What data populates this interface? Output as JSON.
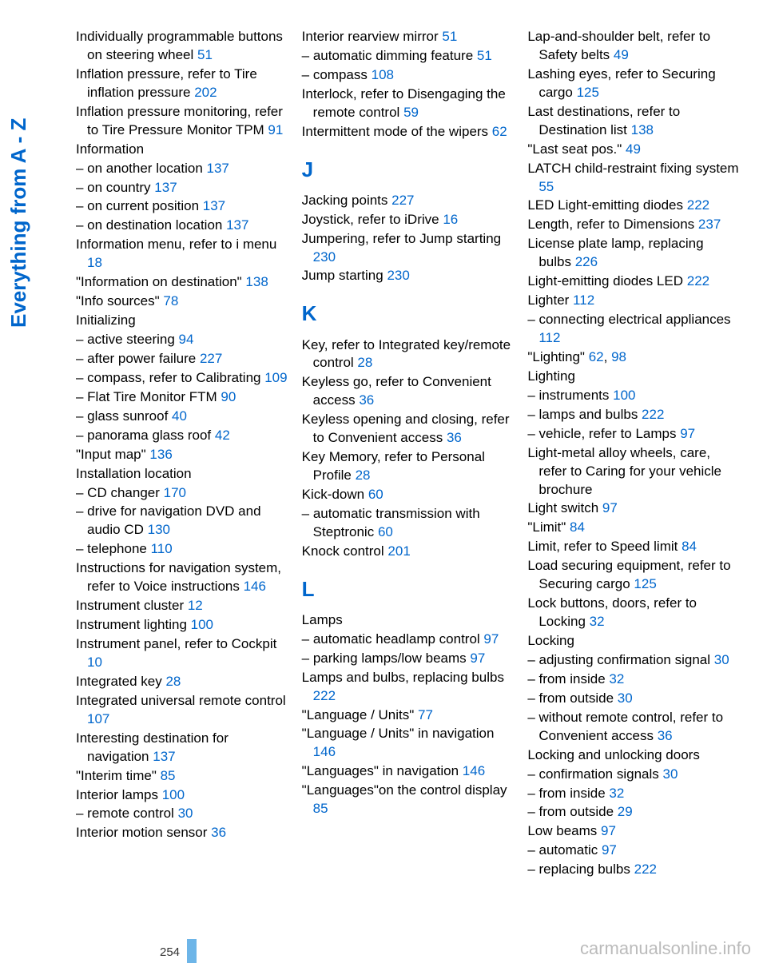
{
  "sidebar_title": "Everything from A - Z",
  "page_number": "254",
  "watermark": "carmanualsonline.info",
  "link_color": "#0066cc",
  "columns": [
    [
      {
        "t": "entry",
        "text": "Individually programmable buttons on steering wheel ",
        "pg": "51"
      },
      {
        "t": "entry",
        "text": "Inflation pressure, refer to Tire inflation pressure ",
        "pg": "202"
      },
      {
        "t": "entry",
        "text": "Inflation pressure monitoring, refer to Tire Pressure Monitor TPM ",
        "pg": "91"
      },
      {
        "t": "plain",
        "text": "Information"
      },
      {
        "t": "sub",
        "text": "– on another location ",
        "pg": "137"
      },
      {
        "t": "sub",
        "text": "– on country ",
        "pg": "137"
      },
      {
        "t": "sub",
        "text": "– on current position ",
        "pg": "137"
      },
      {
        "t": "sub",
        "text": "– on destination location ",
        "pg": "137"
      },
      {
        "t": "entry",
        "text": "Information menu, refer to i menu ",
        "pg": "18"
      },
      {
        "t": "entry",
        "text": "\"Information on destination\" ",
        "pg": "138"
      },
      {
        "t": "entry",
        "text": "\"Info sources\" ",
        "pg": "78"
      },
      {
        "t": "plain",
        "text": "Initializing"
      },
      {
        "t": "sub",
        "text": "– active steering ",
        "pg": "94"
      },
      {
        "t": "sub",
        "text": "– after power failure ",
        "pg": "227"
      },
      {
        "t": "sub",
        "text": "– compass, refer to Calibrating ",
        "pg": "109"
      },
      {
        "t": "sub",
        "text": "– Flat Tire Monitor FTM ",
        "pg": "90"
      },
      {
        "t": "sub",
        "text": "– glass sunroof ",
        "pg": "40"
      },
      {
        "t": "sub",
        "text": "– panorama glass roof ",
        "pg": "42"
      },
      {
        "t": "entry",
        "text": "\"Input map\" ",
        "pg": "136"
      },
      {
        "t": "plain",
        "text": "Installation location"
      },
      {
        "t": "sub",
        "text": "– CD changer ",
        "pg": "170"
      },
      {
        "t": "sub",
        "text": "– drive for navigation DVD and audio CD ",
        "pg": "130"
      },
      {
        "t": "sub",
        "text": "– telephone ",
        "pg": "110"
      },
      {
        "t": "entry",
        "text": "Instructions for navigation system, refer to Voice instructions ",
        "pg": "146"
      },
      {
        "t": "entry",
        "text": "Instrument cluster ",
        "pg": "12"
      },
      {
        "t": "entry",
        "text": "Instrument lighting ",
        "pg": "100"
      },
      {
        "t": "entry",
        "text": "Instrument panel, refer to Cockpit ",
        "pg": "10"
      },
      {
        "t": "entry",
        "text": "Integrated key ",
        "pg": "28"
      },
      {
        "t": "entry",
        "text": "Integrated universal remote control ",
        "pg": "107"
      },
      {
        "t": "entry",
        "text": "Interesting destination for navigation ",
        "pg": "137"
      },
      {
        "t": "entry",
        "text": "\"Interim time\" ",
        "pg": "85"
      },
      {
        "t": "entry",
        "text": "Interior lamps ",
        "pg": "100"
      },
      {
        "t": "sub",
        "text": "– remote control ",
        "pg": "30"
      },
      {
        "t": "entry",
        "text": "Interior motion sensor ",
        "pg": "36"
      }
    ],
    [
      {
        "t": "entry",
        "text": "Interior rearview mirror ",
        "pg": "51"
      },
      {
        "t": "sub",
        "text": "– automatic dimming feature ",
        "pg": "51"
      },
      {
        "t": "sub",
        "text": "– compass ",
        "pg": "108"
      },
      {
        "t": "entry",
        "text": "Interlock, refer to Disengaging the remote control ",
        "pg": "59"
      },
      {
        "t": "entry",
        "text": "Intermittent mode of the wipers ",
        "pg": "62"
      },
      {
        "t": "letter",
        "text": "J"
      },
      {
        "t": "entry",
        "text": "Jacking points ",
        "pg": "227"
      },
      {
        "t": "entry",
        "text": "Joystick, refer to iDrive ",
        "pg": "16"
      },
      {
        "t": "entry",
        "text": "Jumpering, refer to Jump starting ",
        "pg": "230"
      },
      {
        "t": "entry",
        "text": "Jump starting ",
        "pg": "230"
      },
      {
        "t": "letter",
        "text": "K"
      },
      {
        "t": "entry",
        "text": "Key, refer to Integrated key/remote control ",
        "pg": "28"
      },
      {
        "t": "entry",
        "text": "Keyless go, refer to Convenient access ",
        "pg": "36"
      },
      {
        "t": "entry",
        "text": "Keyless opening and closing, refer to Convenient access ",
        "pg": "36"
      },
      {
        "t": "entry",
        "text": "Key Memory, refer to Personal Profile ",
        "pg": "28"
      },
      {
        "t": "entry",
        "text": "Kick-down ",
        "pg": "60"
      },
      {
        "t": "sub",
        "text": "– automatic transmission with Steptronic ",
        "pg": "60"
      },
      {
        "t": "entry",
        "text": "Knock control ",
        "pg": "201"
      },
      {
        "t": "letter",
        "text": "L"
      },
      {
        "t": "plain",
        "text": "Lamps"
      },
      {
        "t": "sub",
        "text": "– automatic headlamp control ",
        "pg": "97"
      },
      {
        "t": "sub",
        "text": "– parking lamps/low beams ",
        "pg": "97"
      },
      {
        "t": "entry",
        "text": "Lamps and bulbs, replacing bulbs ",
        "pg": "222"
      },
      {
        "t": "entry",
        "text": "\"Language / Units\" ",
        "pg": "77"
      },
      {
        "t": "entry",
        "text": "\"Language / Units\" in navigation ",
        "pg": "146"
      },
      {
        "t": "entry",
        "text": "\"Languages\" in navigation ",
        "pg": "146"
      },
      {
        "t": "entry",
        "text": "\"Languages\"on the control display ",
        "pg": "85"
      }
    ],
    [
      {
        "t": "entry",
        "text": "Lap-and-shoulder belt, refer to Safety belts ",
        "pg": "49"
      },
      {
        "t": "entry",
        "text": "Lashing eyes, refer to Securing cargo ",
        "pg": "125"
      },
      {
        "t": "entry",
        "text": "Last destinations, refer to Destination list ",
        "pg": "138"
      },
      {
        "t": "entry",
        "text": "\"Last seat pos.\" ",
        "pg": "49"
      },
      {
        "t": "entry",
        "text": "LATCH child-restraint fixing system ",
        "pg": "55"
      },
      {
        "t": "entry",
        "text": "LED Light-emitting diodes ",
        "pg": "222"
      },
      {
        "t": "entry",
        "text": "Length, refer to Dimensions ",
        "pg": "237"
      },
      {
        "t": "entry",
        "text": "License plate lamp, replacing bulbs ",
        "pg": "226"
      },
      {
        "t": "entry",
        "text": "Light-emitting diodes LED ",
        "pg": "222"
      },
      {
        "t": "entry",
        "text": "Lighter ",
        "pg": "112"
      },
      {
        "t": "sub",
        "text": "– connecting electrical appliances ",
        "pg": "112"
      },
      {
        "t": "entry2",
        "text": "\"Lighting\" ",
        "pg": "62",
        "pg2": "98"
      },
      {
        "t": "plain",
        "text": "Lighting"
      },
      {
        "t": "sub",
        "text": "– instruments ",
        "pg": "100"
      },
      {
        "t": "sub",
        "text": "– lamps and bulbs ",
        "pg": "222"
      },
      {
        "t": "sub",
        "text": "– vehicle, refer to Lamps ",
        "pg": "97"
      },
      {
        "t": "plain",
        "text": "Light-metal alloy wheels, care, refer to Caring for your vehicle brochure"
      },
      {
        "t": "entry",
        "text": "Light switch ",
        "pg": "97"
      },
      {
        "t": "entry",
        "text": "\"Limit\" ",
        "pg": "84"
      },
      {
        "t": "entry",
        "text": "Limit, refer to Speed limit ",
        "pg": "84"
      },
      {
        "t": "entry",
        "text": "Load securing equipment, refer to Securing cargo ",
        "pg": "125"
      },
      {
        "t": "entry",
        "text": "Lock buttons, doors, refer to Locking ",
        "pg": "32"
      },
      {
        "t": "plain",
        "text": "Locking"
      },
      {
        "t": "sub",
        "text": "– adjusting confirmation signal ",
        "pg": "30"
      },
      {
        "t": "sub",
        "text": "– from inside ",
        "pg": "32"
      },
      {
        "t": "sub",
        "text": "– from outside ",
        "pg": "30"
      },
      {
        "t": "sub",
        "text": "– without remote control, refer to Convenient access ",
        "pg": "36"
      },
      {
        "t": "plain",
        "text": "Locking and unlocking doors"
      },
      {
        "t": "sub",
        "text": "– confirmation signals ",
        "pg": "30"
      },
      {
        "t": "sub",
        "text": "– from inside ",
        "pg": "32"
      },
      {
        "t": "sub",
        "text": "– from outside ",
        "pg": "29"
      },
      {
        "t": "entry",
        "text": "Low beams ",
        "pg": "97"
      },
      {
        "t": "sub",
        "text": "– automatic ",
        "pg": "97"
      },
      {
        "t": "sub",
        "text": "– replacing bulbs ",
        "pg": "222"
      }
    ]
  ]
}
